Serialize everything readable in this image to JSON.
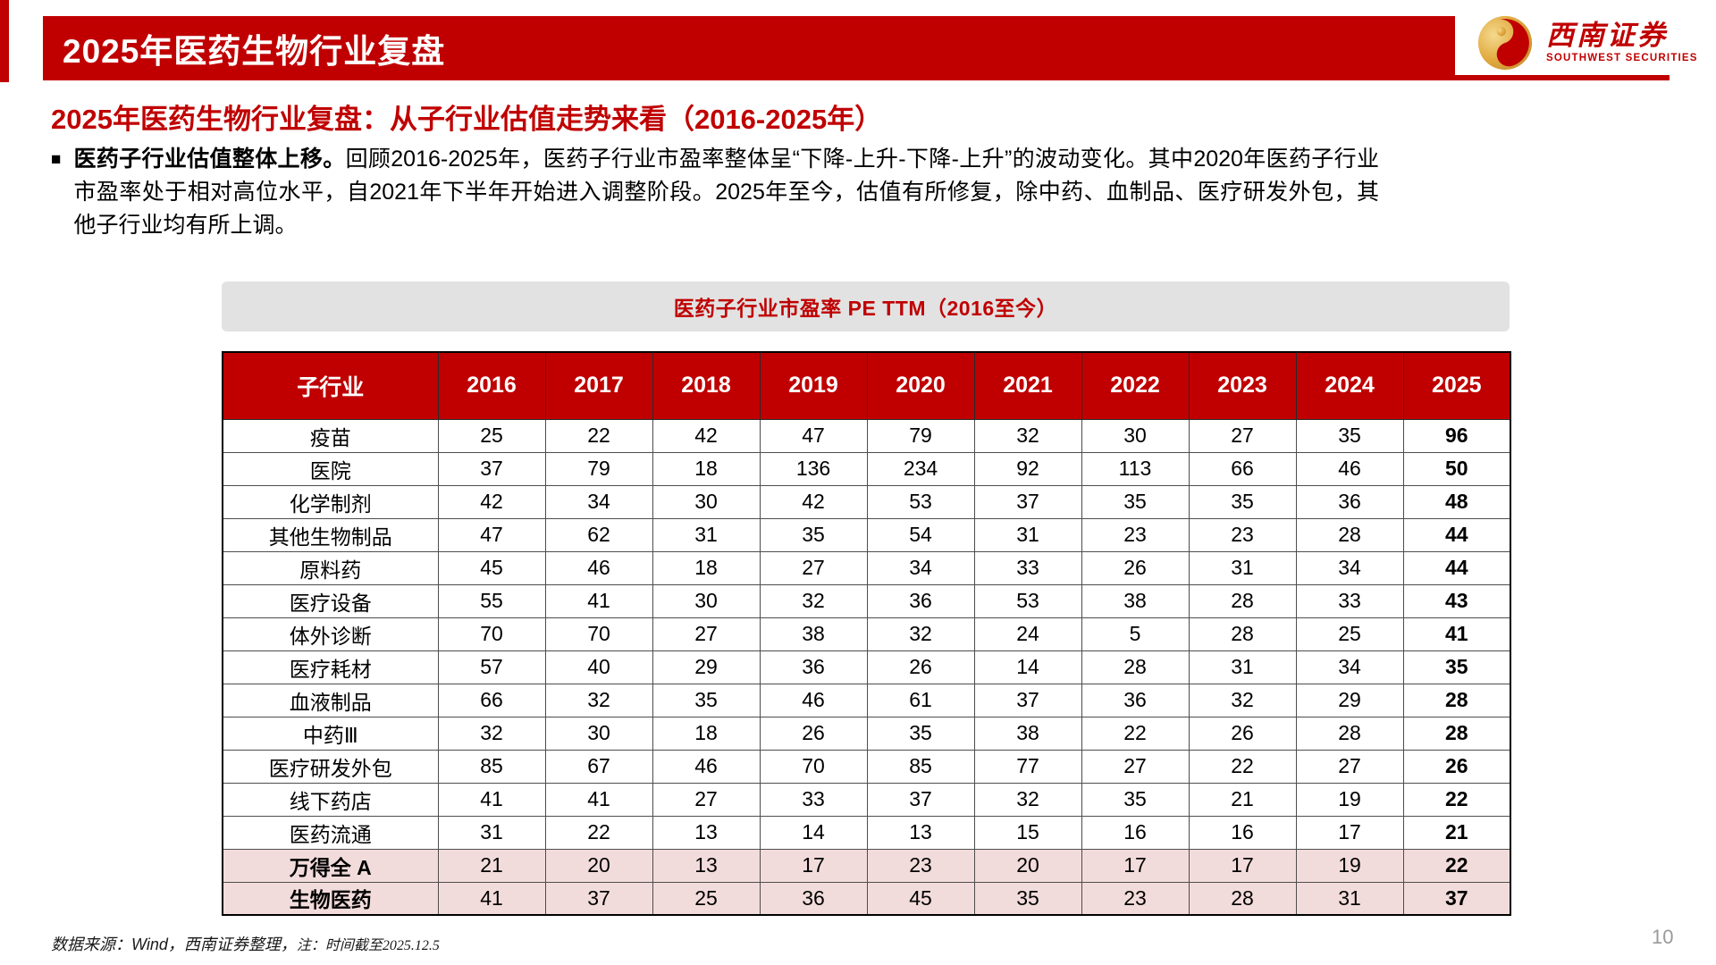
{
  "header": {
    "title": "2025年医药生物行业复盘"
  },
  "logo": {
    "cn": "西南证券",
    "en": "SOUTHWEST SECURITIES",
    "gold": "#DFA93E",
    "red": "#C00000"
  },
  "subtitle": "2025年医药生物行业复盘：从子行业估值走势来看（2016-2025年）",
  "paragraph": {
    "bullet": "■",
    "bold": "医药子行业估值整体上移。",
    "rest": "回顾2016-2025年，医药子行业市盈率整体呈“下降-上升-下降-上升”的波动变化。其中2020年医药子行业市盈率处于相对高位水平，自2021年下半年开始进入调整阶段。2025年至今，估值有所修复，除中药、血制品、医疗研发外包，其他子行业均有所上调。"
  },
  "banner_title": "医药子行业市盈率 PE TTM（2016至今）",
  "table": {
    "columns": [
      "子行业",
      "2016",
      "2017",
      "2018",
      "2019",
      "2020",
      "2021",
      "2022",
      "2023",
      "2024",
      "2025"
    ],
    "rows": [
      {
        "name": "疫苗",
        "values": [
          25,
          22,
          42,
          47,
          79,
          32,
          30,
          27,
          35,
          96
        ],
        "highlight": false
      },
      {
        "name": "医院",
        "values": [
          37,
          79,
          18,
          136,
          234,
          92,
          113,
          66,
          46,
          50
        ],
        "highlight": false
      },
      {
        "name": "化学制剂",
        "values": [
          42,
          34,
          30,
          42,
          53,
          37,
          35,
          35,
          36,
          48
        ],
        "highlight": false
      },
      {
        "name": "其他生物制品",
        "values": [
          47,
          62,
          31,
          35,
          54,
          31,
          23,
          23,
          28,
          44
        ],
        "highlight": false
      },
      {
        "name": "原料药",
        "values": [
          45,
          46,
          18,
          27,
          34,
          33,
          26,
          31,
          34,
          44
        ],
        "highlight": false
      },
      {
        "name": "医疗设备",
        "values": [
          55,
          41,
          30,
          32,
          36,
          53,
          38,
          28,
          33,
          43
        ],
        "highlight": false
      },
      {
        "name": "体外诊断",
        "values": [
          70,
          70,
          27,
          38,
          32,
          24,
          5,
          28,
          25,
          41
        ],
        "highlight": false
      },
      {
        "name": "医疗耗材",
        "values": [
          57,
          40,
          29,
          36,
          26,
          14,
          28,
          31,
          34,
          35
        ],
        "highlight": false
      },
      {
        "name": "血液制品",
        "values": [
          66,
          32,
          35,
          46,
          61,
          37,
          36,
          32,
          29,
          28
        ],
        "highlight": false
      },
      {
        "name": "中药Ⅲ",
        "values": [
          32,
          30,
          18,
          26,
          35,
          38,
          22,
          26,
          28,
          28
        ],
        "highlight": false
      },
      {
        "name": "医疗研发外包",
        "values": [
          85,
          67,
          46,
          70,
          85,
          77,
          27,
          22,
          27,
          26
        ],
        "highlight": false
      },
      {
        "name": "线下药店",
        "values": [
          41,
          41,
          27,
          33,
          37,
          32,
          35,
          21,
          19,
          22
        ],
        "highlight": false
      },
      {
        "name": "医药流通",
        "values": [
          31,
          22,
          13,
          14,
          13,
          15,
          16,
          16,
          17,
          21
        ],
        "highlight": false
      },
      {
        "name": "万得全 A",
        "values": [
          21,
          20,
          13,
          17,
          23,
          20,
          17,
          17,
          19,
          22
        ],
        "highlight": true
      },
      {
        "name": "生物医药",
        "values": [
          41,
          37,
          25,
          36,
          45,
          35,
          23,
          28,
          31,
          37
        ],
        "highlight": true
      }
    ]
  },
  "footer": {
    "source": "数据来源：Wind，西南证券整理，",
    "note": "注：时间截至2025.12.5",
    "page": "10"
  },
  "colors": {
    "accent_red": "#C00000",
    "banner_gray": "#E2E2E2",
    "highlight_pink": "#F2DCDB"
  }
}
